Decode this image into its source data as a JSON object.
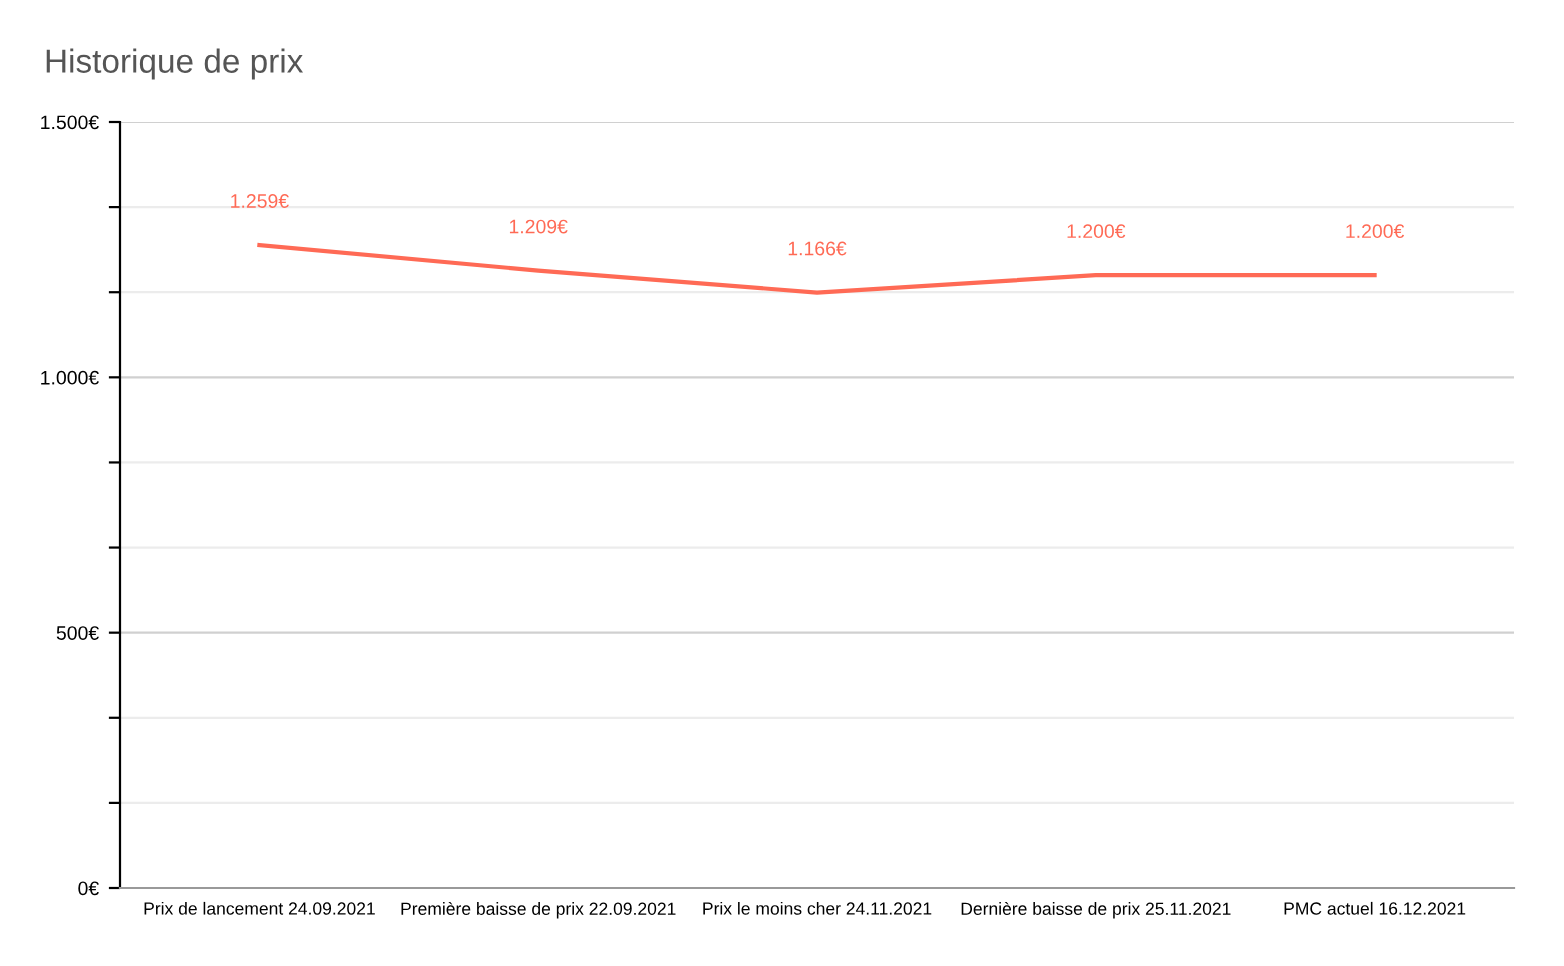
{
  "chart_data": {
    "type": "line",
    "title": "Historique de prix",
    "categories": [
      "Prix de lancement 24.09.2021",
      "Première baisse de prix 22.09.2021",
      "Prix le moins cher 24.11.2021",
      "Dernière baisse de prix 25.11.2021",
      "PMC actuel 16.12.2021"
    ],
    "series": [
      {
        "color": "#ff6a55",
        "values": [
          1259,
          1209,
          1166,
          1200,
          1200
        ],
        "value_labels": [
          "1.259€",
          "1.209€",
          "1.166€",
          "1.200€",
          "1.200€"
        ]
      }
    ],
    "ylim": [
      0,
      1500
    ],
    "yticks": [
      {
        "value": 0,
        "label": "0€"
      },
      {
        "value": 166.667,
        "label": null
      },
      {
        "value": 333.333,
        "label": null
      },
      {
        "value": 500,
        "label": "500€"
      },
      {
        "value": 666.667,
        "label": null
      },
      {
        "value": 833.333,
        "label": null
      },
      {
        "value": 1000,
        "label": "1.000€"
      },
      {
        "value": 1166.667,
        "label": null
      },
      {
        "value": 1333.333,
        "label": null
      },
      {
        "value": 1500,
        "label": "1.500€"
      }
    ],
    "grid": "y",
    "legend": false,
    "marker": "none",
    "line_style": "solid"
  }
}
